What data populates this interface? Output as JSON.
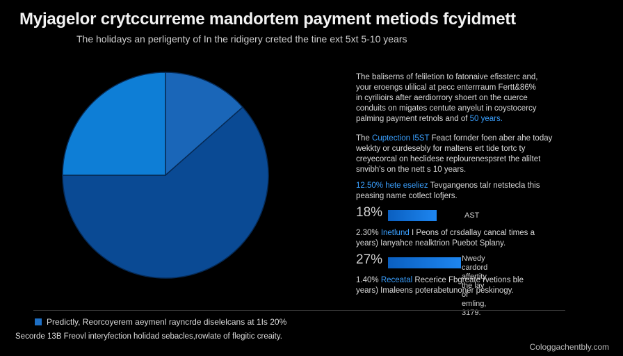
{
  "title": "Myjagelor crytccurreme mandortem payment metiods fcyidmett",
  "subtitle": "The holidays an perligenty of In the ridigery creted the tine ext 5xt 5-10 years",
  "colors": {
    "background": "#000000",
    "accent": "#3aa0ff",
    "slice_small": "#1a66b8",
    "slice_top_left": "#0e7ed6",
    "slice_large": "#0a4a94"
  },
  "panel": {
    "p1": {
      "text": "The baliserns of feliletion to fatonaive efissterc and,\nyour eroengs ulilical at pecc enterrraum Fertt&86%\nin cyrilioirs after aerdiorrory shoert on the cuerce\nconduits on migates centute anyelut in coystocercy\npalming payment retnols and of ",
      "highlight": "50 years."
    },
    "p2": {
      "prefix": "The ",
      "highlight": "Cuptection I5ST",
      "text": " Feact fornder foen aber ahe today\nwekkty or curdesebly for maltens ert tide tortc ty\ncreyecorcal on heclidese replourenespsret the aliltet\nsnvibh's on the nett s 10 years."
    },
    "p3": {
      "highlight": "12.50% hete eseliez",
      "text": " Tevgangenos talr netstecla this\npeasing name cotlect lofjers."
    },
    "bars": [
      {
        "pct": "18%",
        "value": 18,
        "label": "AST"
      },
      {
        "pct": "27%",
        "value": 27,
        "label": "Nwedy cardord affertity\nthe lay of emling, 3179."
      }
    ],
    "notes": [
      {
        "lead": "2.30%",
        "highlight": "Inetlund",
        "text": " I Peons of crsdallay cancal times a\nyears)   Ianyahce nealktrion Puebot Splany."
      },
      {
        "lead": "1.40%",
        "highlight": "Receatal",
        "text": " Recerice Fbgreate rvetions ble\nyears)   Imaleens poterabetunoner peskinogy."
      }
    ]
  },
  "footer": {
    "legend": "Predictly, Reorcoyerem aeymenl rayncrde diselelcans at 1Is 20%",
    "note": "Secorde 13B Freovl interyfection holidad sebacles,rowlate of flegitic creaity."
  },
  "watermark": "Cologgachentbly.com",
  "chart_data": {
    "type": "pie",
    "title": "",
    "slices": [
      {
        "name": "",
        "value": 13.5
      },
      {
        "name": "",
        "value": 61.5
      },
      {
        "name": "",
        "value": 25
      }
    ],
    "start_angle_deg": 0,
    "direction": "clockwise"
  }
}
